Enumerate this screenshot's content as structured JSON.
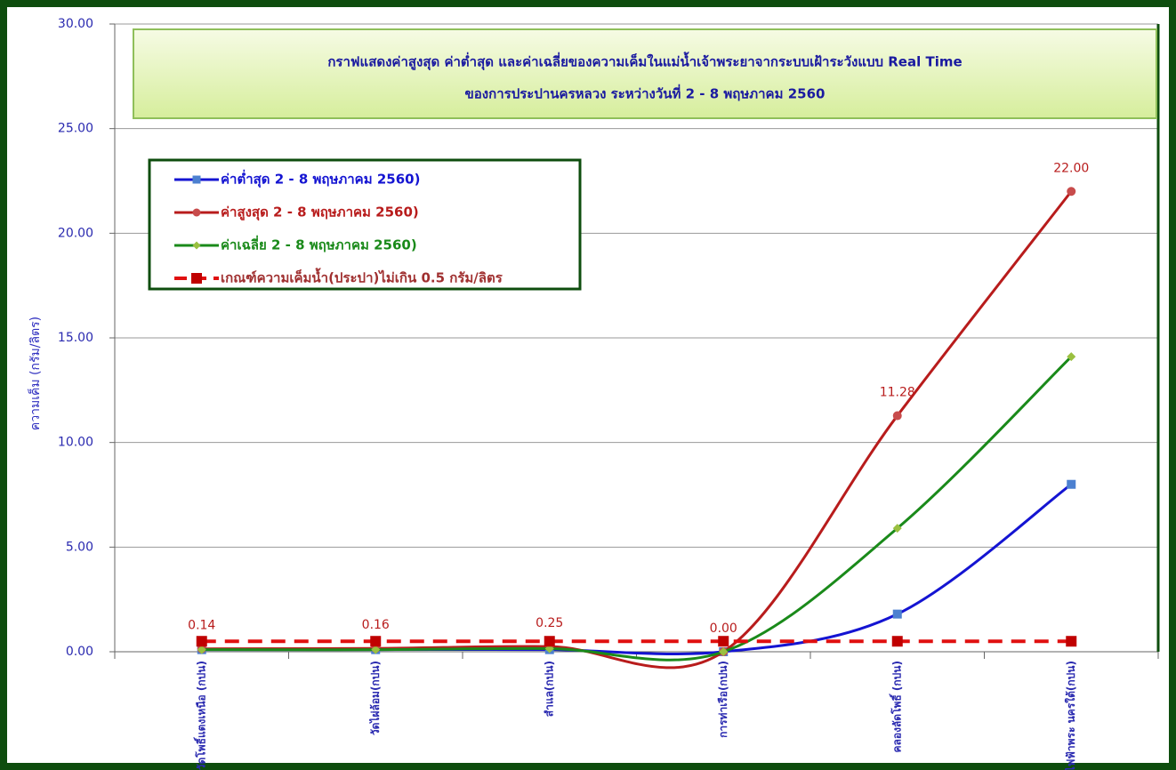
{
  "chart_data": {
    "type": "line",
    "title": "กราฟแสดงค่าสูงสุด ค่าต่ำสุด และค่าเฉลี่ยของความเค็มในแม่น้ำเจ้าพระยาจากระบบเฝ้าระวังแบบ Real Time",
    "subtitle": "ของการประปานครหลวง ระหว่างวันที่  2 - 8 พฤษภาคม 2560",
    "y_label": "ความเค็ม (กรัม/ลิตร)",
    "categories": [
      "วัดโพธิ์แตงเหนือ (กปน)",
      "วัดไผ่ล้อม(กปน)",
      "สำแล(กปน)",
      "การท่าเรือ(กปน)",
      "คลองลัดโพธิ์ (กปน)",
      "โรงไฟฟ้าพระ นครใต้(กปน)"
    ],
    "series": [
      {
        "name": "ค่าต่ำสุด 2 - 8 พฤษภาคม 2560)",
        "color": "#1414d2",
        "marker": "square",
        "line_style": "solid",
        "values": [
          0.1,
          0.1,
          0.1,
          0.0,
          1.8,
          8.0
        ]
      },
      {
        "name": "ค่าสูงสุด 2 - 8 พฤษภาคม 2560)",
        "color": "#b81c1c",
        "marker": "circle",
        "line_style": "solid",
        "values": [
          0.14,
          0.16,
          0.25,
          0.0,
          11.28,
          22.0
        ],
        "value_labels": [
          "0.14",
          "0.16",
          "0.25",
          "0.00",
          "11.28",
          "22.00"
        ]
      },
      {
        "name": "ค่าเฉลี่ย 2 - 8 พฤษภาคม 2560)",
        "color": "#1a8a1a",
        "marker": "diamond",
        "line_style": "solid",
        "values": [
          0.1,
          0.1,
          0.15,
          0.0,
          5.9,
          14.1
        ]
      },
      {
        "name": "เกณฑ์ความเค็มน้ำ(ประปา)ไม่เกิน 0.5 กรัม/ลิตร",
        "color": "#e01010",
        "marker": "square",
        "line_style": "dashed",
        "values": [
          0.5,
          0.5,
          0.5,
          0.5,
          0.5,
          0.5
        ]
      }
    ],
    "ylim": [
      0,
      30
    ],
    "yticks": [
      {
        "value": 0,
        "label": "0.00"
      },
      {
        "value": 5,
        "label": "5.00"
      },
      {
        "value": 10,
        "label": "10.00"
      },
      {
        "value": 15,
        "label": "15.00"
      },
      {
        "value": 20,
        "label": "20.00"
      },
      {
        "value": 25,
        "label": "25.00"
      },
      {
        "value": 30,
        "label": "30.00"
      }
    ],
    "grid": true,
    "smooth": true,
    "legend": "upper left"
  }
}
